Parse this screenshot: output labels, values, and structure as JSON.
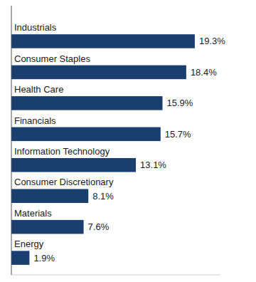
{
  "chart_data": {
    "type": "bar",
    "orientation": "horizontal",
    "categories": [
      "Energy",
      "Materials",
      "Consumer Discretionary",
      "Information Technology",
      "Financials",
      "Health Care",
      "Consumer Staples",
      "Industrials"
    ],
    "values": [
      1.9,
      7.6,
      8.1,
      13.1,
      15.7,
      15.9,
      18.4,
      19.3
    ],
    "value_labels": [
      "1.9%",
      "7.6%",
      "8.1%",
      "13.1%",
      "15.7%",
      "15.9%",
      "18.4%",
      "19.3%"
    ],
    "color": "#1a3f6f",
    "xlim": [
      0,
      22
    ],
    "data_labels": true,
    "tick_labels": false
  }
}
